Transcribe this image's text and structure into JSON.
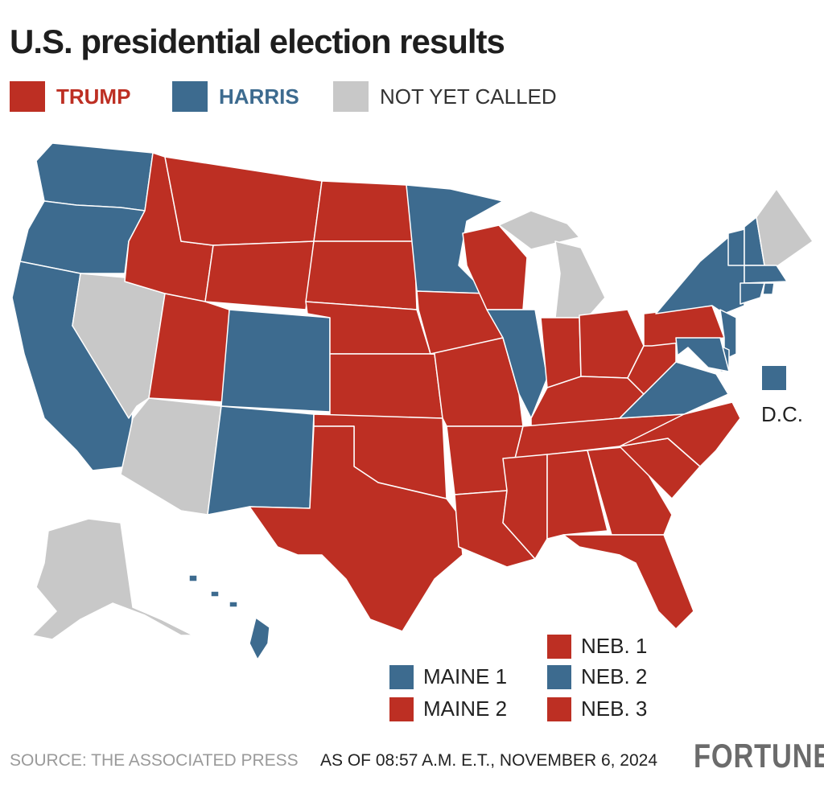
{
  "title": "U.S. presidential election results",
  "colors": {
    "trump": "#BD2F23",
    "harris": "#3D6B8F",
    "uncalled": "#C8C8C8"
  },
  "legend": [
    {
      "key": "trump",
      "label": "TRUMP"
    },
    {
      "key": "harris",
      "label": "HARRIS"
    },
    {
      "key": "uncalled",
      "label": "NOT YET CALLED"
    }
  ],
  "states": {
    "WA": "harris",
    "OR": "harris",
    "CA": "harris",
    "NV": "uncalled",
    "ID": "trump",
    "MT": "trump",
    "WY": "trump",
    "UT": "trump",
    "CO": "harris",
    "AZ": "uncalled",
    "NM": "harris",
    "ND": "trump",
    "SD": "trump",
    "NE": "trump",
    "KS": "trump",
    "OK": "trump",
    "TX": "trump",
    "MN": "harris",
    "IA": "trump",
    "MO": "trump",
    "AR": "trump",
    "LA": "trump",
    "WI": "trump",
    "IL": "harris",
    "MI": "uncalled",
    "IN": "trump",
    "OH": "trump",
    "KY": "trump",
    "TN": "trump",
    "MS": "trump",
    "AL": "trump",
    "GA": "trump",
    "FL": "trump",
    "SC": "trump",
    "NC": "trump",
    "VA": "harris",
    "WV": "trump",
    "PA": "trump",
    "NY": "harris",
    "VT": "harris",
    "NH": "harris",
    "ME": "uncalled",
    "MA": "harris",
    "CT": "harris",
    "RI": "harris",
    "NJ": "harris",
    "DE": "harris",
    "MD": "harris",
    "AK": "uncalled",
    "HI": "harris",
    "DC": "harris"
  },
  "dc_label": "D.C.",
  "districts": [
    {
      "label": "NEB. 1",
      "winner": "trump"
    },
    {
      "label": "MAINE 1",
      "winner": "harris"
    },
    {
      "label": "NEB. 2",
      "winner": "harris"
    },
    {
      "label": "MAINE 2",
      "winner": "trump"
    },
    {
      "label": "NEB. 3",
      "winner": "trump"
    }
  ],
  "footer": {
    "source": "SOURCE: THE ASSOCIATED PRESS",
    "timestamp": "AS OF 08:57 A.M. E.T., NOVEMBER 6, 2024",
    "logo": "FORTUNE"
  }
}
